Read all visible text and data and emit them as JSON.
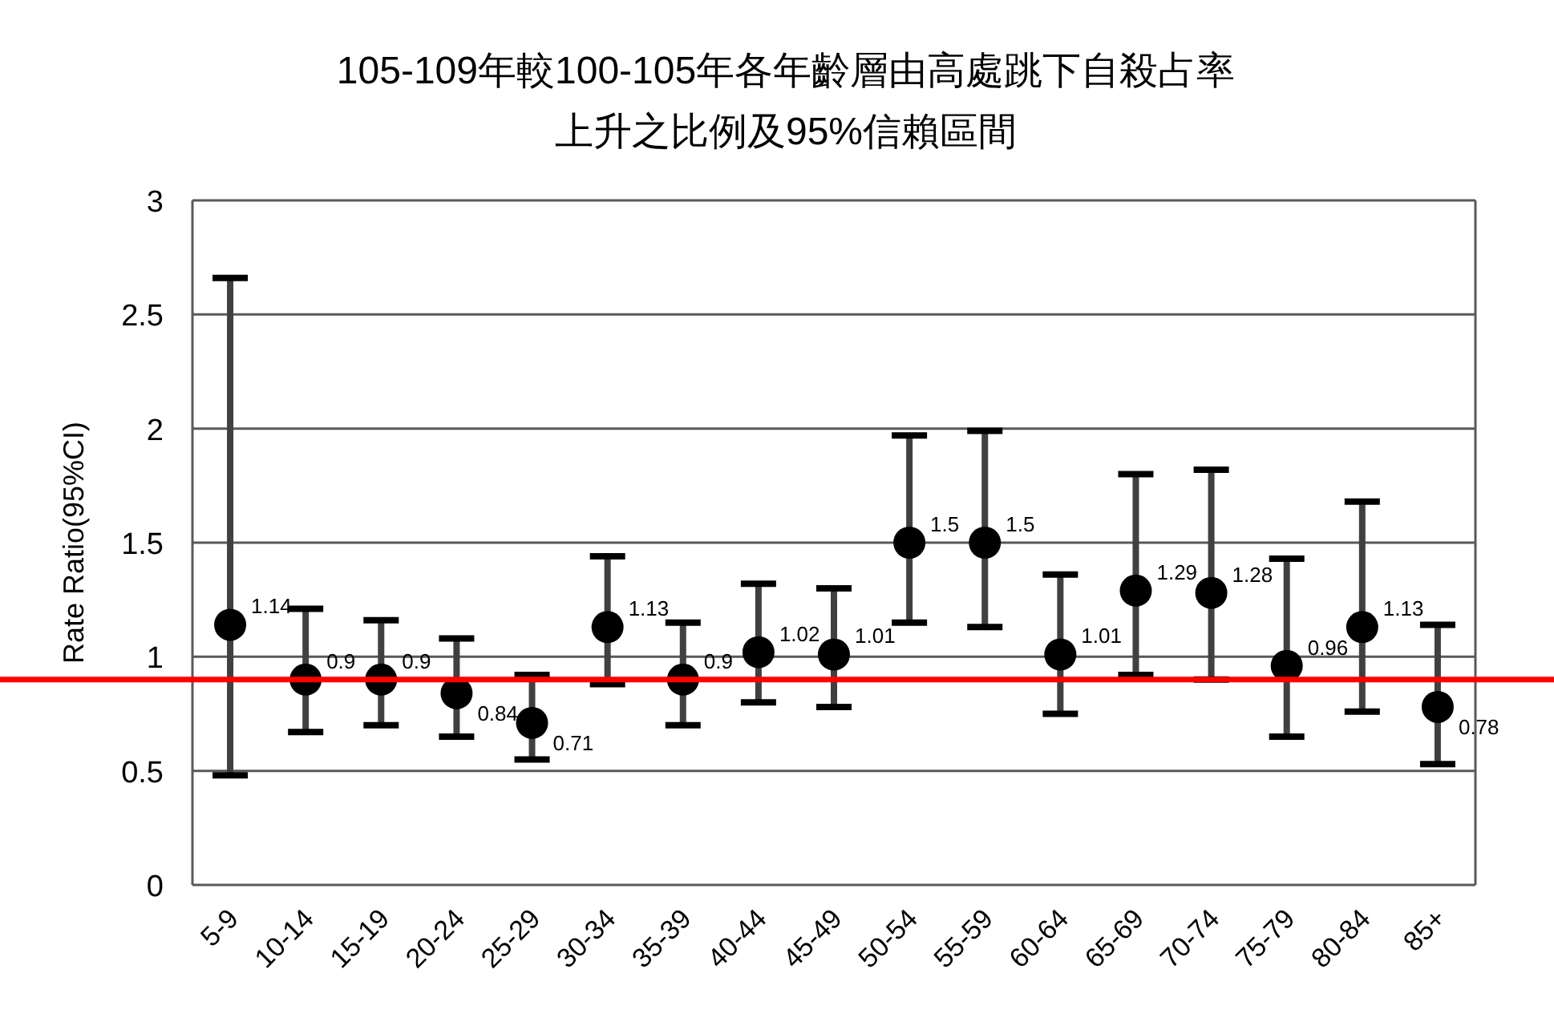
{
  "chart_data": {
    "type": "scatter",
    "title": "105-109年較100-105年各年齡層由高處跳下自殺占率上升之比例及95%信賴區間",
    "ylabel": "Rate Ratio(95%CI)",
    "categories": [
      "5-9",
      "10-14",
      "15-19",
      "20-24",
      "25-29",
      "30-34",
      "35-39",
      "40-44",
      "45-49",
      "50-54",
      "55-59",
      "60-64",
      "65-69",
      "70-74",
      "75-79",
      "80-84",
      "85+"
    ],
    "series": [
      {
        "color": "#000000",
        "values": [
          1.14,
          0.9,
          0.9,
          0.84,
          0.71,
          1.13,
          0.9,
          1.02,
          1.01,
          1.5,
          1.5,
          1.01,
          1.29,
          1.28,
          0.96,
          1.13,
          0.78
        ],
        "errors": [
          [
            0.48,
            2.66
          ],
          [
            0.67,
            1.21
          ],
          [
            0.7,
            1.16
          ],
          [
            0.65,
            1.08
          ],
          [
            0.55,
            0.92
          ],
          [
            0.88,
            1.44
          ],
          [
            0.7,
            1.15
          ],
          [
            0.8,
            1.32
          ],
          [
            0.78,
            1.3
          ],
          [
            1.15,
            1.97
          ],
          [
            1.13,
            1.99
          ],
          [
            0.75,
            1.36
          ],
          [
            0.92,
            1.8
          ],
          [
            0.9,
            1.82
          ],
          [
            0.65,
            1.43
          ],
          [
            0.76,
            1.68
          ],
          [
            0.53,
            1.14
          ]
        ]
      }
    ],
    "data_labels": true,
    "marker": "circle",
    "ylim": [
      0,
      3
    ],
    "yticks": [
      0,
      0.5,
      1,
      1.5,
      2,
      2.5,
      3
    ],
    "grid": "y",
    "ref_lines": [
      {
        "axis": "y",
        "value": 0.9,
        "color": "#ff0000"
      }
    ]
  }
}
